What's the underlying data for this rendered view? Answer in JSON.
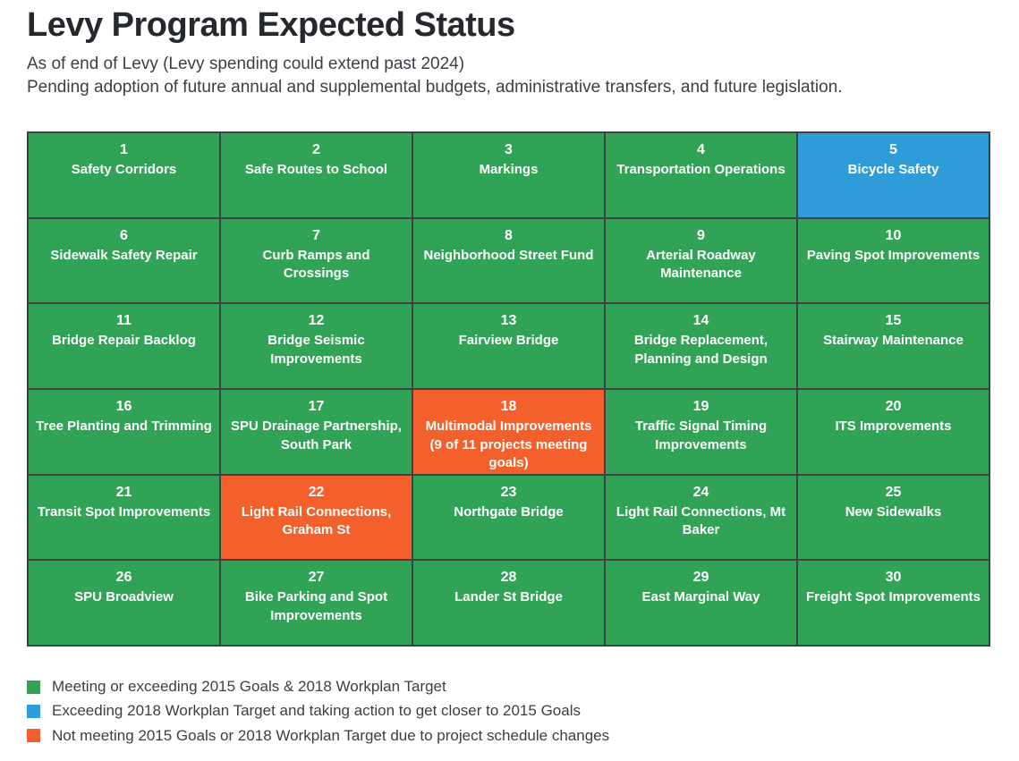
{
  "header": {
    "title": "Levy Program Expected Status",
    "subtitle1": "As of end of Levy (Levy spending could extend past 2024)",
    "subtitle2": "Pending adoption of future annual and supplemental budgets, administrative transfers, and future legislation."
  },
  "colors": {
    "green": "#31a356",
    "blue": "#2d9cd9",
    "orange": "#f4602c",
    "grid_line": "#3f4245",
    "title_text": "#25282d",
    "body_text": "#3b3e44",
    "cell_text": "#ffffff"
  },
  "chart_data": {
    "type": "table",
    "title": "Levy Program Expected Status",
    "grid": {
      "rows": 6,
      "cols": 5
    },
    "status_meanings": {
      "green": "Meeting or exceeding 2015 Goals & 2018 Workplan Target",
      "blue": "Exceeding 2018 Workplan Target and taking action to get closer to 2015 Goals",
      "orange": "Not meeting 2015 Goals or 2018 Workplan Target due to project schedule changes"
    },
    "cells": [
      {
        "number": "1",
        "name": "Safety Corridors",
        "status": "green"
      },
      {
        "number": "2",
        "name": "Safe Routes to School",
        "status": "green"
      },
      {
        "number": "3",
        "name": "Markings",
        "status": "green"
      },
      {
        "number": "4",
        "name": "Transportation Operations",
        "status": "green"
      },
      {
        "number": "5",
        "name": "Bicycle Safety",
        "status": "blue"
      },
      {
        "number": "6",
        "name": "Sidewalk Safety Repair",
        "status": "green"
      },
      {
        "number": "7",
        "name": "Curb Ramps and Crossings",
        "status": "green"
      },
      {
        "number": "8",
        "name": "Neighborhood Street Fund",
        "status": "green"
      },
      {
        "number": "9",
        "name": "Arterial Roadway Maintenance",
        "status": "green"
      },
      {
        "number": "10",
        "name": "Paving Spot Improvements",
        "status": "green"
      },
      {
        "number": "11",
        "name": "Bridge Repair Backlog",
        "status": "green"
      },
      {
        "number": "12",
        "name": "Bridge Seismic Improvements",
        "status": "green"
      },
      {
        "number": "13",
        "name": "Fairview Bridge",
        "status": "green"
      },
      {
        "number": "14",
        "name": "Bridge Replacement, Planning and Design",
        "status": "green"
      },
      {
        "number": "15",
        "name": "Stairway Maintenance",
        "status": "green"
      },
      {
        "number": "16",
        "name": "Tree Planting and Trimming",
        "status": "green"
      },
      {
        "number": "17",
        "name": "SPU Drainage Partnership, South Park",
        "status": "green"
      },
      {
        "number": "18",
        "name": "Multimodal Improvements (9 of 11 projects meeting goals)",
        "status": "orange"
      },
      {
        "number": "19",
        "name": "Traffic Signal Timing Improvements",
        "status": "green"
      },
      {
        "number": "20",
        "name": "ITS Improvements",
        "status": "green"
      },
      {
        "number": "21",
        "name": "Transit Spot Improvements",
        "status": "green"
      },
      {
        "number": "22",
        "name": "Light Rail Connections, Graham St",
        "status": "orange"
      },
      {
        "number": "23",
        "name": "Northgate Bridge",
        "status": "green"
      },
      {
        "number": "24",
        "name": "Light Rail Connections, Mt Baker",
        "status": "green"
      },
      {
        "number": "25",
        "name": "New Sidewalks",
        "status": "green"
      },
      {
        "number": "26",
        "name": "SPU Broadview",
        "status": "green"
      },
      {
        "number": "27",
        "name": "Bike Parking and Spot Improvements",
        "status": "green"
      },
      {
        "number": "28",
        "name": "Lander St Bridge",
        "status": "green"
      },
      {
        "number": "29",
        "name": "East Marginal Way",
        "status": "green"
      },
      {
        "number": "30",
        "name": "Freight Spot Improvements",
        "status": "green"
      }
    ],
    "legend": [
      {
        "status": "green",
        "label": "Meeting or exceeding 2015 Goals & 2018 Workplan Target"
      },
      {
        "status": "blue",
        "label": "Exceeding 2018 Workplan Target and taking action to get closer to 2015 Goals"
      },
      {
        "status": "orange",
        "label": "Not meeting 2015 Goals or 2018 Workplan Target due to project schedule changes"
      }
    ]
  }
}
